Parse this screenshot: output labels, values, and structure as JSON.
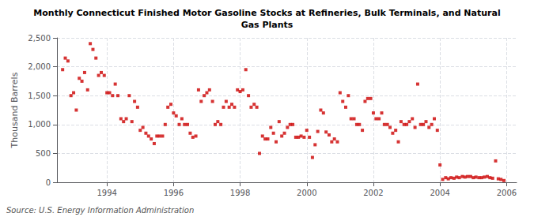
{
  "chart_data": {
    "type": "scatter",
    "title": "Monthly Connecticut Finished Motor Gasoline Stocks at Refineries, Bulk Terminals, and Natural\nGas Plants",
    "ylabel": "Thousand Barrels",
    "annotations": [
      "Source: U.S. Energy Information Administration"
    ],
    "color": "#cc0000",
    "marker": "square",
    "grid": true,
    "xlim": [
      1992.5,
      2006.3
    ],
    "xticks": [
      1994,
      1996,
      1998,
      2000,
      2002,
      2004,
      2006
    ],
    "ylim": [
      0,
      2500
    ],
    "yticks": [
      0,
      500,
      {
        "value": 1000,
        "label": "1,000"
      },
      {
        "value": 1500,
        "label": "1,500"
      },
      {
        "value": 2000,
        "label": "2,000"
      },
      {
        "value": 2500,
        "label": "2,500"
      }
    ],
    "x": [
      1992.67,
      1992.75,
      1992.83,
      1992.92,
      1993.0,
      1993.08,
      1993.17,
      1993.25,
      1993.33,
      1993.42,
      1993.5,
      1993.58,
      1993.67,
      1993.75,
      1993.83,
      1993.92,
      1994.0,
      1994.08,
      1994.17,
      1994.25,
      1994.33,
      1994.42,
      1994.5,
      1994.58,
      1994.67,
      1994.75,
      1994.83,
      1994.92,
      1995.0,
      1995.08,
      1995.17,
      1995.25,
      1995.33,
      1995.42,
      1995.5,
      1995.58,
      1995.67,
      1995.75,
      1995.83,
      1995.92,
      1996.0,
      1996.08,
      1996.17,
      1996.25,
      1996.33,
      1996.42,
      1996.5,
      1996.58,
      1996.67,
      1996.75,
      1996.83,
      1996.92,
      1997.0,
      1997.08,
      1997.17,
      1997.25,
      1997.33,
      1997.42,
      1997.5,
      1997.58,
      1997.67,
      1997.75,
      1997.83,
      1997.92,
      1998.0,
      1998.08,
      1998.17,
      1998.25,
      1998.33,
      1998.42,
      1998.5,
      1998.58,
      1998.67,
      1998.75,
      1998.83,
      1998.92,
      1999.0,
      1999.08,
      1999.17,
      1999.25,
      1999.33,
      1999.42,
      1999.5,
      1999.58,
      1999.67,
      1999.75,
      1999.83,
      1999.92,
      2000.0,
      2000.08,
      2000.17,
      2000.25,
      2000.33,
      2000.42,
      2000.5,
      2000.58,
      2000.67,
      2000.75,
      2000.83,
      2000.92,
      2001.0,
      2001.08,
      2001.17,
      2001.25,
      2001.33,
      2001.42,
      2001.5,
      2001.58,
      2001.67,
      2001.75,
      2001.83,
      2001.92,
      2002.0,
      2002.08,
      2002.17,
      2002.25,
      2002.33,
      2002.42,
      2002.5,
      2002.58,
      2002.67,
      2002.75,
      2002.83,
      2002.92,
      2003.0,
      2003.08,
      2003.17,
      2003.25,
      2003.33,
      2003.42,
      2003.5,
      2003.58,
      2003.67,
      2003.75,
      2003.83,
      2003.92,
      2004.0,
      2004.08,
      2004.17,
      2004.25,
      2004.33,
      2004.42,
      2004.5,
      2004.58,
      2004.67,
      2004.75,
      2004.83,
      2004.92,
      2005.0,
      2005.08,
      2005.17,
      2005.25,
      2005.33,
      2005.42,
      2005.5,
      2005.58,
      2005.67,
      2005.75,
      2005.83,
      2005.92
    ],
    "values": [
      1950,
      2150,
      2100,
      1500,
      1550,
      1250,
      1800,
      1750,
      1900,
      1600,
      2400,
      2300,
      2150,
      1850,
      1900,
      1850,
      1550,
      1550,
      1500,
      1700,
      1500,
      1100,
      1050,
      1100,
      1500,
      1050,
      1400,
      1300,
      900,
      950,
      850,
      800,
      750,
      670,
      800,
      800,
      800,
      1000,
      1300,
      1350,
      1200,
      1150,
      1000,
      1100,
      1000,
      1000,
      850,
      780,
      800,
      1600,
      1400,
      1500,
      1550,
      1600,
      1400,
      1000,
      1050,
      1000,
      1300,
      1400,
      1300,
      1350,
      1300,
      1600,
      1570,
      1600,
      1950,
      1500,
      1300,
      1350,
      1300,
      500,
      800,
      750,
      750,
      950,
      850,
      700,
      1050,
      800,
      850,
      950,
      1000,
      1000,
      780,
      780,
      800,
      780,
      900,
      780,
      430,
      650,
      880,
      1250,
      1200,
      870,
      820,
      700,
      750,
      700,
      1550,
      1400,
      1300,
      1500,
      1100,
      1100,
      1000,
      1000,
      900,
      1400,
      1450,
      1450,
      1200,
      1100,
      1100,
      1200,
      1000,
      1000,
      950,
      850,
      900,
      700,
      1050,
      1000,
      1000,
      1050,
      1100,
      950,
      1700,
      1000,
      1000,
      1050,
      950,
      1000,
      1100,
      900,
      300,
      50,
      80,
      60,
      80,
      70,
      90,
      80,
      100,
      90,
      100,
      100,
      80,
      90,
      80,
      80,
      90,
      100,
      80,
      70,
      370,
      60,
      50,
      30
    ]
  }
}
